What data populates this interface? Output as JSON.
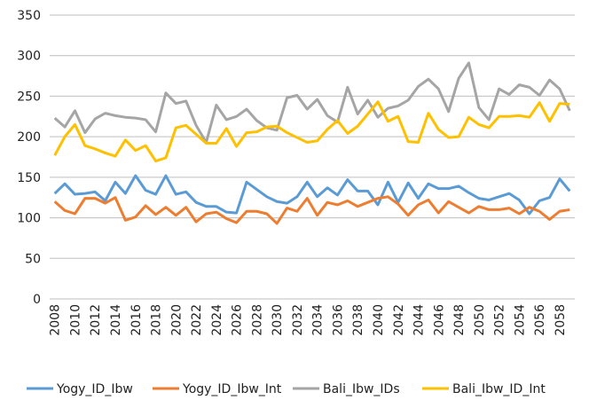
{
  "chart_data": {
    "type": "line",
    "categories": [
      "2008",
      null,
      "2010",
      null,
      "2012",
      null,
      "2014",
      null,
      "2016",
      null,
      "2018",
      null,
      "2020",
      null,
      "2022",
      null,
      "2024",
      null,
      "2026",
      null,
      "2028",
      null,
      "2030",
      null,
      "2032",
      null,
      "2034",
      null,
      "2036",
      null,
      "2038",
      null,
      "2040",
      null,
      "2042",
      null,
      "2044",
      null,
      "2046",
      null,
      "2048",
      null,
      "2050",
      null,
      "2052",
      null,
      "2054",
      null,
      "2056",
      null,
      "2058",
      null
    ],
    "series": [
      {
        "name": "Yogy_ID_Ibw",
        "color": "#5b9bd5",
        "values": [
          130,
          142,
          129,
          130,
          132,
          121,
          144,
          130,
          152,
          134,
          129,
          152,
          129,
          132,
          119,
          114,
          114,
          107,
          106,
          144,
          135,
          126,
          120,
          118,
          126,
          144,
          126,
          137,
          128,
          147,
          133,
          133,
          116,
          144,
          119,
          143,
          124,
          142,
          136,
          136,
          139,
          131,
          124,
          122,
          126,
          130,
          122,
          105,
          121,
          125,
          148,
          133
        ]
      },
      {
        "name": "Yogy_ID_Ibw_Int",
        "color": "#ed7d31",
        "values": [
          120,
          109,
          105,
          124,
          124,
          118,
          125,
          97,
          101,
          115,
          104,
          113,
          103,
          113,
          95,
          105,
          107,
          99,
          94,
          108,
          108,
          105,
          93,
          112,
          108,
          124,
          103,
          119,
          116,
          121,
          114,
          119,
          124,
          126,
          117,
          103,
          116,
          122,
          106,
          120,
          113,
          106,
          114,
          110,
          110,
          112,
          105,
          113,
          108,
          98,
          108,
          110
        ]
      },
      {
        "name": "Bali_Ibw_IDs",
        "color": "#a5a5a5",
        "values": [
          223,
          212,
          232,
          205,
          222,
          229,
          226,
          224,
          223,
          221,
          206,
          254,
          241,
          244,
          214,
          193,
          239,
          221,
          225,
          234,
          220,
          211,
          208,
          248,
          251,
          234,
          246,
          226,
          218,
          261,
          228,
          245,
          224,
          235,
          238,
          245,
          262,
          271,
          259,
          231,
          272,
          291,
          236,
          221,
          259,
          252,
          264,
          261,
          251,
          270,
          259,
          232
        ]
      },
      {
        "name": "Bali_Ibw_ID_Int",
        "color": "#ffc000",
        "values": [
          177,
          200,
          215,
          189,
          185,
          180,
          176,
          196,
          183,
          189,
          170,
          174,
          211,
          214,
          203,
          192,
          192,
          210,
          188,
          205,
          206,
          212,
          213,
          205,
          199,
          193,
          195,
          209,
          220,
          204,
          213,
          228,
          243,
          219,
          225,
          194,
          193,
          229,
          209,
          199,
          200,
          224,
          215,
          211,
          225,
          225,
          226,
          224,
          242,
          219,
          241,
          240
        ]
      }
    ],
    "ylim": [
      0,
      350
    ],
    "yticks": [
      0,
      50,
      100,
      150,
      200,
      250,
      300,
      350
    ],
    "grid": true,
    "legend": "bottom"
  }
}
